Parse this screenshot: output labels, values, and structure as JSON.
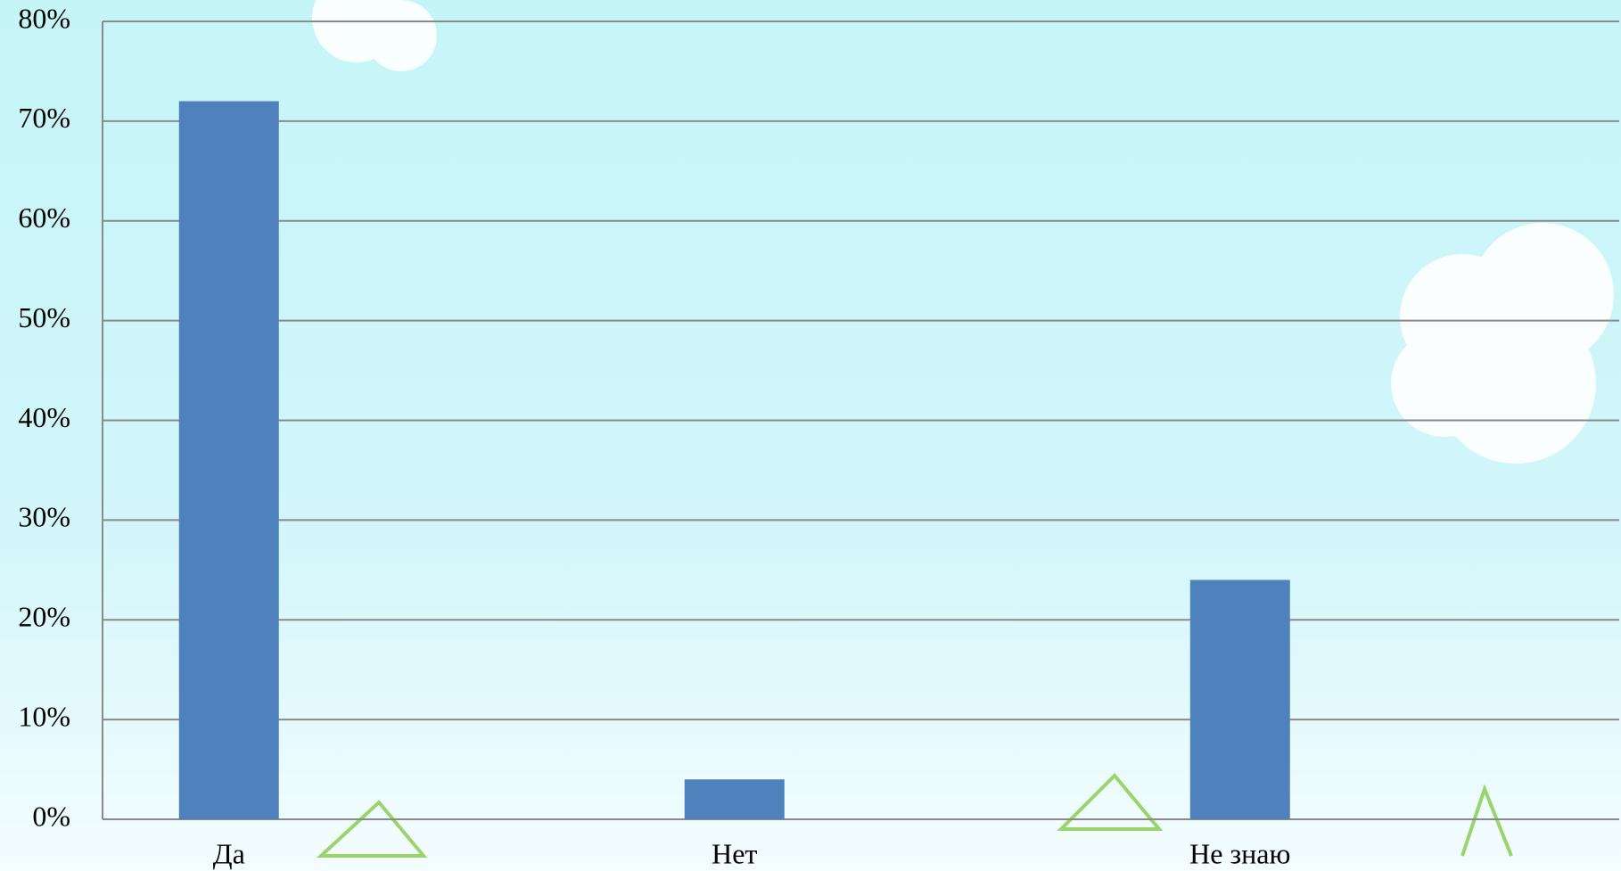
{
  "chart_data": {
    "type": "bar",
    "categories": [
      "Да",
      "Нет",
      "Не знаю"
    ],
    "values": [
      72,
      4,
      24
    ],
    "color": "#4f81bd",
    "ylim": [
      0,
      80
    ],
    "yticks": [
      {
        "value": 0,
        "label": "0%"
      },
      {
        "value": 10,
        "label": "10%"
      },
      {
        "value": 20,
        "label": "20%"
      },
      {
        "value": 30,
        "label": "30%"
      },
      {
        "value": 40,
        "label": "40%"
      },
      {
        "value": 50,
        "label": "50%"
      },
      {
        "value": 60,
        "label": "60%"
      },
      {
        "value": 70,
        "label": "70%"
      },
      {
        "value": 80,
        "label": "80%"
      }
    ],
    "grid": true
  }
}
